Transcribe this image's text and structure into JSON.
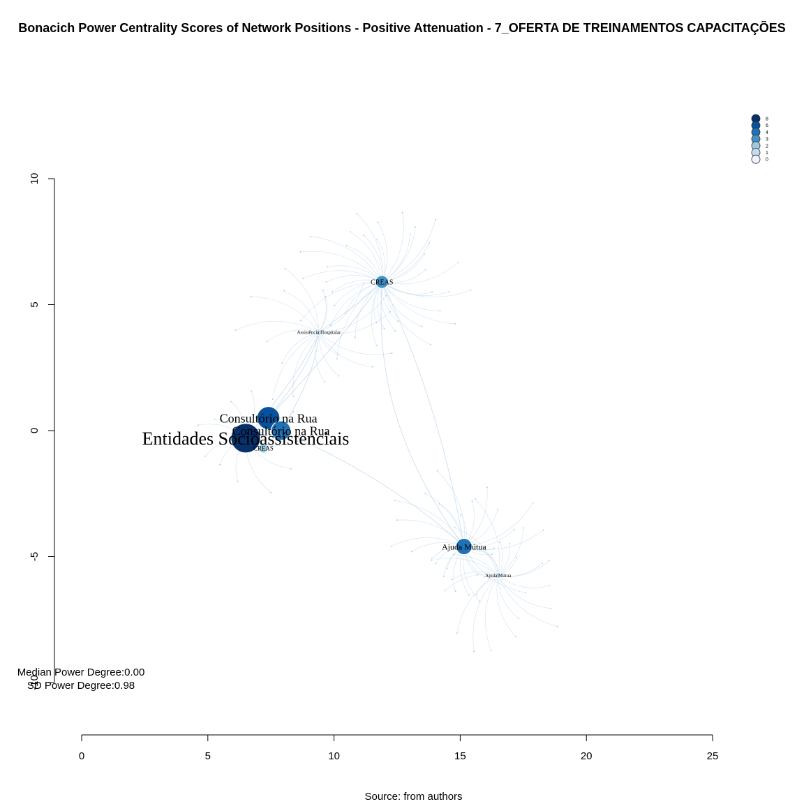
{
  "title": "Bonacich Power Centrality Scores of Network Positions - Positive Attenuation - 7_OFERTA DE TREINAMENTOS CAPACITAÇÕES",
  "source": "Source: from authors",
  "stats": {
    "median": "Median Power Degree:0.00",
    "sd": "SD Power Degree:0.98"
  },
  "axes": {
    "x_ticks": [
      "0",
      "5",
      "10",
      "15",
      "20",
      "25"
    ],
    "y_ticks": [
      "-10",
      "-5",
      "0",
      "5",
      "10"
    ]
  },
  "legend": {
    "position": "top-right",
    "entries": [
      "8",
      "6",
      "4",
      "3",
      "2",
      "1",
      "0"
    ],
    "colors": [
      "#08306b",
      "#08519c",
      "#2171b5",
      "#4292c6",
      "#9ecae1",
      "#c6dbef",
      "#eff3ff"
    ]
  },
  "colors": {
    "edge": "#c6dbef",
    "node_outline": "#ffffff"
  },
  "labeled_nodes": [
    {
      "label": "Entidades Socioassistenciais",
      "score": 8,
      "x": 6.5,
      "y": -0.3
    },
    {
      "label": "Consultório na Rua",
      "score": 6,
      "x": 7.4,
      "y": 0.5
    },
    {
      "label": "Consultório na Rua",
      "score": 5,
      "x": 7.9,
      "y": 0.0
    },
    {
      "label": "CREAS",
      "score": 2,
      "x": 7.2,
      "y": -0.7
    },
    {
      "label": "CREAS",
      "score": 3,
      "x": 11.9,
      "y": 5.9
    },
    {
      "label": "Assistência Hospitalar",
      "score": 1,
      "x": 9.4,
      "y": 3.9
    },
    {
      "label": "Ajuda Mútua",
      "score": 4,
      "x": 15.15,
      "y": -4.6
    },
    {
      "label": "Ajuda Mútua",
      "score": 1,
      "x": 16.5,
      "y": -5.75
    }
  ]
}
